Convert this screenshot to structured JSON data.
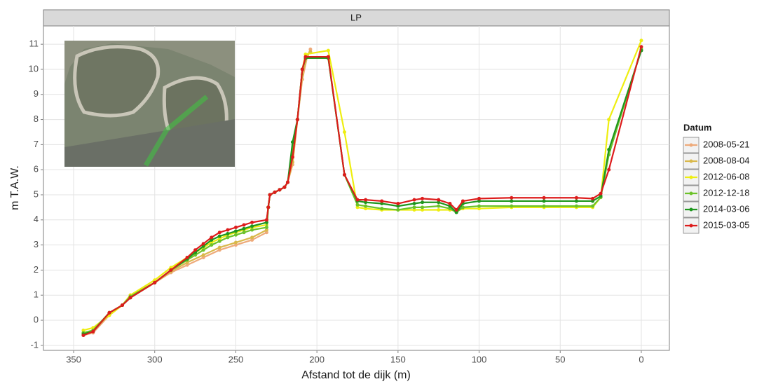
{
  "chart_data": {
    "type": "line",
    "strip": "LP",
    "xlabel": "Afstand tot de dijk (m)",
    "ylabel": "m T.A.W.",
    "legend_title": "Datum",
    "legend_position": "right",
    "grid": true,
    "xlim": [
      368.6,
      -17.3
    ],
    "ylim": [
      -1.2,
      11.73
    ],
    "xticks": [
      350,
      300,
      250,
      200,
      150,
      100,
      50,
      0
    ],
    "yticks": [
      -1,
      0,
      1,
      2,
      3,
      4,
      5,
      6,
      7,
      8,
      9,
      10,
      11
    ],
    "series": [
      {
        "name": "2008-05-21",
        "color": "#eeaa7a",
        "x": [
          344,
          338,
          328,
          320,
          315,
          300,
          290,
          280,
          270,
          260,
          250,
          240,
          231,
          230,
          229,
          226,
          223,
          220,
          218,
          215,
          212,
          209,
          206,
          204
        ],
        "values": [
          -0.6,
          -0.5,
          0.2,
          0.6,
          1.0,
          1.5,
          1.9,
          2.2,
          2.5,
          2.8,
          3.0,
          3.2,
          3.5,
          4.5,
          5.0,
          5.1,
          5.2,
          5.3,
          5.5,
          6.2,
          8.0,
          9.6,
          10.5,
          10.8
        ]
      },
      {
        "name": "2008-08-04",
        "color": "#d9b84a",
        "x": [
          344,
          338,
          328,
          320,
          315,
          300,
          290,
          280,
          270,
          260,
          250,
          240,
          231,
          230,
          229,
          226,
          223,
          220,
          218,
          215,
          212,
          209,
          206,
          204
        ],
        "values": [
          -0.55,
          -0.45,
          0.25,
          0.6,
          1.0,
          1.5,
          1.95,
          2.3,
          2.6,
          2.9,
          3.1,
          3.3,
          3.6,
          4.5,
          5.0,
          5.1,
          5.2,
          5.3,
          5.5,
          6.3,
          8.0,
          9.8,
          10.55,
          10.7
        ]
      },
      {
        "name": "2012-06-08",
        "color": "#eeee10",
        "x": [
          344,
          338,
          328,
          320,
          315,
          300,
          290,
          280,
          275,
          270,
          265,
          260,
          255,
          250,
          245,
          240,
          231,
          230,
          229,
          226,
          223,
          220,
          218,
          215,
          212,
          209,
          207,
          193,
          183,
          175,
          170,
          160,
          150,
          140,
          135,
          125,
          118,
          114,
          110,
          100,
          80,
          60,
          40,
          30,
          25,
          20,
          0
        ],
        "values": [
          -0.4,
          -0.3,
          0.2,
          0.6,
          1.0,
          1.6,
          2.1,
          2.5,
          2.7,
          2.9,
          3.1,
          3.25,
          3.4,
          3.5,
          3.6,
          3.7,
          3.8,
          4.5,
          5.0,
          5.1,
          5.2,
          5.3,
          5.5,
          6.5,
          8.0,
          10.0,
          10.6,
          10.75,
          7.5,
          4.5,
          4.45,
          4.4,
          4.4,
          4.4,
          4.4,
          4.4,
          4.4,
          4.35,
          4.45,
          4.45,
          4.5,
          4.5,
          4.5,
          4.5,
          4.9,
          8.0,
          11.15
        ]
      },
      {
        "name": "2012-12-18",
        "color": "#6cc22a",
        "x": [
          344,
          338,
          328,
          320,
          315,
          300,
          290,
          280,
          275,
          270,
          265,
          260,
          255,
          250,
          245,
          240,
          231,
          230,
          229,
          226,
          223,
          220,
          218,
          215,
          212,
          209,
          207,
          193,
          183,
          175,
          170,
          160,
          150,
          140,
          135,
          125,
          118,
          114,
          110,
          100,
          80,
          60,
          40,
          30,
          25,
          20,
          0
        ],
        "values": [
          -0.5,
          -0.4,
          0.3,
          0.6,
          0.95,
          1.5,
          2.0,
          2.4,
          2.6,
          2.8,
          3.0,
          3.15,
          3.3,
          3.4,
          3.5,
          3.6,
          3.7,
          4.5,
          5.0,
          5.1,
          5.2,
          5.3,
          5.5,
          6.8,
          8.0,
          10.0,
          10.45,
          10.45,
          5.8,
          4.6,
          4.55,
          4.45,
          4.4,
          4.5,
          4.5,
          4.55,
          4.45,
          4.3,
          4.5,
          4.55,
          4.55,
          4.55,
          4.55,
          4.55,
          4.9,
          6.6,
          10.8
        ]
      },
      {
        "name": "2014-03-06",
        "color": "#1e961e",
        "x": [
          344,
          338,
          328,
          320,
          315,
          300,
          290,
          280,
          275,
          270,
          265,
          260,
          255,
          250,
          245,
          240,
          231,
          230,
          229,
          226,
          223,
          220,
          218,
          215,
          212,
          209,
          207,
          193,
          183,
          175,
          170,
          160,
          150,
          140,
          135,
          125,
          118,
          114,
          110,
          100,
          80,
          60,
          40,
          30,
          25,
          20,
          0
        ],
        "values": [
          -0.55,
          -0.45,
          0.3,
          0.6,
          0.9,
          1.5,
          2.0,
          2.45,
          2.7,
          2.95,
          3.2,
          3.35,
          3.45,
          3.55,
          3.65,
          3.75,
          3.9,
          4.5,
          5.0,
          5.1,
          5.2,
          5.3,
          5.5,
          7.1,
          8.0,
          10.0,
          10.45,
          10.45,
          5.8,
          4.75,
          4.7,
          4.65,
          4.55,
          4.65,
          4.7,
          4.7,
          4.55,
          4.3,
          4.65,
          4.75,
          4.75,
          4.75,
          4.75,
          4.75,
          4.95,
          6.8,
          10.75
        ]
      },
      {
        "name": "2015-03-05",
        "color": "#dd1c1c",
        "x": [
          344,
          338,
          328,
          320,
          315,
          300,
          290,
          280,
          275,
          270,
          265,
          260,
          255,
          250,
          245,
          240,
          231,
          230,
          229,
          226,
          223,
          220,
          218,
          215,
          212,
          209,
          207,
          193,
          183,
          175,
          170,
          160,
          150,
          140,
          135,
          125,
          118,
          114,
          110,
          100,
          80,
          60,
          40,
          30,
          25,
          20,
          0
        ],
        "values": [
          -0.6,
          -0.45,
          0.3,
          0.6,
          0.9,
          1.5,
          2.0,
          2.5,
          2.8,
          3.05,
          3.3,
          3.5,
          3.6,
          3.7,
          3.8,
          3.9,
          4.0,
          4.5,
          5.0,
          5.1,
          5.2,
          5.3,
          5.5,
          6.5,
          8.0,
          10.0,
          10.5,
          10.5,
          5.8,
          4.8,
          4.8,
          4.75,
          4.65,
          4.8,
          4.85,
          4.8,
          4.65,
          4.4,
          4.75,
          4.85,
          4.88,
          4.88,
          4.88,
          4.85,
          5.05,
          6.0,
          10.9
        ]
      }
    ]
  }
}
